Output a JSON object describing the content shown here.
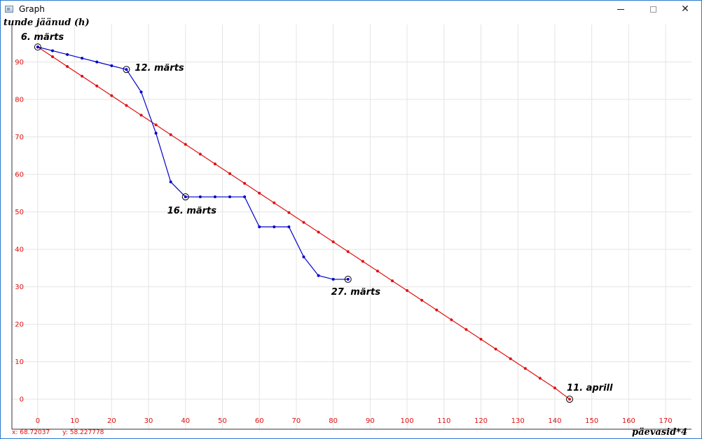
{
  "window": {
    "title": "Graph",
    "icon": "app-window-icon",
    "controls": {
      "minimize": "minimize-icon",
      "maximize": "maximize-icon",
      "close": "close-icon",
      "close_glyph": "✕"
    }
  },
  "status": {
    "x_readout": "x: 68.72037",
    "y_readout": "y: 58.227778"
  },
  "colors": {
    "actual": "#0000cc",
    "ideal": "#e01010",
    "grid": "#e4e4e4",
    "axis": "#333333",
    "tick_label": "#e01010"
  },
  "chart_data": {
    "type": "line",
    "title": "",
    "xlabel": "päevasid*4",
    "ylabel": "tunde jäänud (h)",
    "xlim": [
      -7,
      177
    ],
    "ylim": [
      -8,
      100
    ],
    "x_ticks": [
      0,
      10,
      20,
      30,
      40,
      50,
      60,
      70,
      80,
      90,
      100,
      110,
      120,
      130,
      140,
      150,
      160,
      170
    ],
    "y_ticks": [
      0,
      10,
      20,
      30,
      40,
      50,
      60,
      70,
      80,
      90
    ],
    "grid": true,
    "series": [
      {
        "color": "#0000cc",
        "points": [
          [
            0,
            94
          ],
          [
            4,
            93
          ],
          [
            8,
            92
          ],
          [
            12,
            91
          ],
          [
            16,
            90
          ],
          [
            20,
            89
          ],
          [
            24,
            88
          ],
          [
            28,
            82
          ],
          [
            32,
            71
          ],
          [
            36,
            58
          ],
          [
            40,
            54
          ],
          [
            44,
            54
          ],
          [
            48,
            54
          ],
          [
            52,
            54
          ],
          [
            56,
            54
          ],
          [
            60,
            46
          ],
          [
            64,
            46
          ],
          [
            68,
            46
          ],
          [
            72,
            38
          ],
          [
            76,
            33
          ],
          [
            80,
            32
          ],
          [
            84,
            32
          ]
        ]
      },
      {
        "color": "#e01010",
        "points": [
          [
            0,
            94
          ],
          [
            4,
            91.4
          ],
          [
            8,
            88.8
          ],
          [
            12,
            86.2
          ],
          [
            16,
            83.6
          ],
          [
            20,
            81
          ],
          [
            24,
            78.4
          ],
          [
            28,
            75.8
          ],
          [
            32,
            73.2
          ],
          [
            36,
            70.6
          ],
          [
            40,
            68
          ],
          [
            44,
            65.4
          ],
          [
            48,
            62.8
          ],
          [
            52,
            60.2
          ],
          [
            56,
            57.6
          ],
          [
            60,
            55
          ],
          [
            64,
            52.4
          ],
          [
            68,
            49.8
          ],
          [
            72,
            47.2
          ],
          [
            76,
            44.6
          ],
          [
            80,
            42
          ],
          [
            84,
            39.4
          ],
          [
            88,
            36.8
          ],
          [
            92,
            34.2
          ],
          [
            96,
            31.6
          ],
          [
            100,
            29
          ],
          [
            104,
            26.4
          ],
          [
            108,
            23.8
          ],
          [
            112,
            21.2
          ],
          [
            116,
            18.6
          ],
          [
            120,
            16
          ],
          [
            124,
            13.4
          ],
          [
            128,
            10.8
          ],
          [
            132,
            8.2
          ],
          [
            136,
            5.6
          ],
          [
            140,
            3
          ],
          [
            144,
            0
          ]
        ]
      }
    ],
    "annotations": [
      {
        "label": "6. märts",
        "x": 0,
        "y": 94
      },
      {
        "label": "12. märts",
        "x": 24,
        "y": 88
      },
      {
        "label": "16. märts",
        "x": 40,
        "y": 54
      },
      {
        "label": "27. märts",
        "x": 84,
        "y": 32
      },
      {
        "label": "11. aprill",
        "x": 144,
        "y": 0
      }
    ]
  }
}
